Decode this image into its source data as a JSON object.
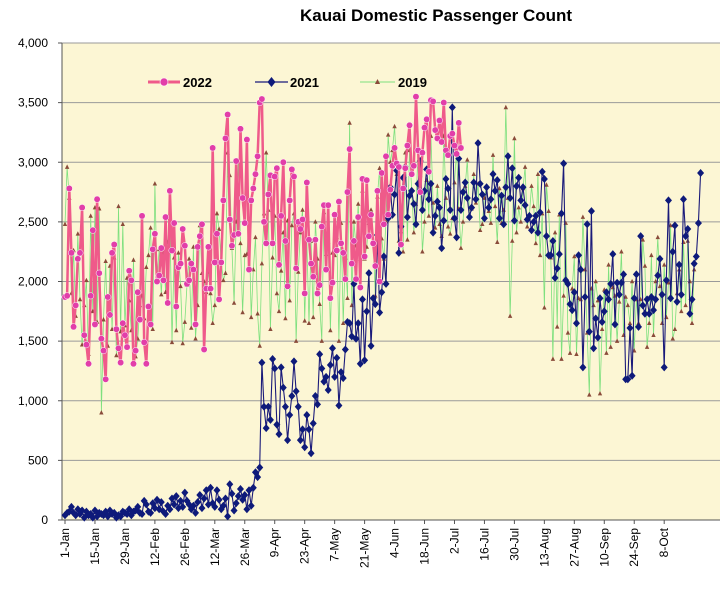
{
  "chart_data": {
    "type": "line",
    "title": "Kauai Domestic Passenger Count",
    "xlabel": "",
    "ylabel": "",
    "ylim": [
      0,
      4000
    ],
    "yticks": [
      "0",
      "500",
      "1,000",
      "1,500",
      "2,000",
      "2,500",
      "3,000",
      "3,500",
      "4,000"
    ],
    "xticks": [
      "1-Jan",
      "15-Jan",
      "29-Jan",
      "12-Feb",
      "26-Feb",
      "12-Mar",
      "26-Mar",
      "9-Apr",
      "23-Apr",
      "7-May",
      "21-May",
      "4-Jun",
      "18-Jun",
      "2-Jul",
      "16-Jul",
      "30-Jul",
      "13-Aug",
      "27-Aug",
      "10-Sep",
      "24-Sep",
      "8-Oct"
    ],
    "x_unit": "day of year",
    "legend_position": "top-left",
    "grid": "horizontal",
    "colors": {
      "plot_bg": "#fcf6d4",
      "y2022": "#ef5a8a",
      "y2021": "#1a1a7a",
      "y2019": "#7ee07e"
    },
    "series": [
      {
        "name": "2022",
        "color": "#ef5a8a",
        "marker": "circle",
        "values": [
          1870,
          1880,
          2780,
          2240,
          1620,
          1800,
          2190,
          2240,
          2620,
          1550,
          1470,
          1310,
          1880,
          2430,
          1640,
          2690,
          2070,
          1520,
          1420,
          1180,
          1870,
          1720,
          2240,
          2310,
          1600,
          1440,
          1320,
          1650,
          1550,
          1450,
          2090,
          2010,
          1310,
          1420,
          1910,
          1680,
          2550,
          1490,
          1310,
          1790,
          1640,
          2270,
          2400,
          2000,
          2050,
          2280,
          2010,
          2540,
          1820,
          2760,
          2260,
          2490,
          1790,
          2120,
          2150,
          2440,
          2300,
          1980,
          2010,
          2150,
          2100,
          1640,
          2290,
          2380,
          2480,
          1430,
          1940,
          2290,
          1940,
          3120,
          2160,
          2400,
          1850,
          2160,
          2680,
          3200,
          3400,
          2520,
          2300,
          2390,
          3010,
          2400,
          3280,
          2700,
          2490,
          3190,
          2100,
          2680,
          2780,
          2900,
          3050,
          3500,
          3530,
          2500,
          2320,
          2730,
          2890,
          2320,
          2880,
          2950,
          2140,
          2550,
          3000,
          2340,
          1960,
          2680,
          2940,
          2880,
          2110,
          2500,
          2440,
          2520,
          1900,
          2830,
          2350,
          2150,
          2040,
          2350,
          1900,
          1970,
          2460,
          2640,
          2100,
          2640,
          1860,
          1990,
          2560,
          2260,
          2670,
          2320,
          2240,
          2020,
          2750,
          3110,
          2150,
          2340,
          2020,
          2540,
          1950,
          2860,
          2210,
          2850,
          2380,
          2560,
          2320,
          2130,
          2760,
          2000,
          2910,
          2480,
          3050,
          2560,
          2770,
          2970,
          3120,
          2990,
          2960,
          2310,
          2780,
          2950,
          3140,
          3310,
          2900,
          2970,
          3550,
          3100,
          2750,
          3080,
          3290,
          3360,
          2920,
          3520,
          3510,
          3270,
          3200,
          3350,
          3170,
          3500,
          3100,
          3060,
          3220,
          3240,
          3140,
          3070,
          3330,
          3120
        ]
      },
      {
        "name": "2021",
        "color": "#1a1a7a",
        "marker": "diamond",
        "values": [
          40,
          60,
          70,
          110,
          60,
          40,
          90,
          50,
          80,
          20,
          70,
          40,
          50,
          20,
          80,
          30,
          60,
          50,
          40,
          70,
          30,
          80,
          50,
          60,
          20,
          40,
          30,
          70,
          60,
          50,
          90,
          40,
          70,
          80,
          110,
          60,
          50,
          160,
          130,
          70,
          60,
          140,
          100,
          170,
          90,
          150,
          70,
          50,
          120,
          90,
          180,
          130,
          200,
          100,
          160,
          110,
          230,
          160,
          130,
          90,
          120,
          60,
          150,
          210,
          100,
          180,
          250,
          130,
          270,
          140,
          110,
          250,
          170,
          90,
          120,
          180,
          30,
          300,
          220,
          80,
          140,
          200,
          260,
          170,
          210,
          90,
          250,
          120,
          270,
          400,
          360,
          440,
          1320,
          950,
          770,
          950,
          840,
          1350,
          1270,
          800,
          720,
          1280,
          1110,
          950,
          670,
          880,
          1040,
          1330,
          1080,
          950,
          670,
          760,
          610,
          880,
          760,
          560,
          810,
          1040,
          970,
          1390,
          1270,
          1160,
          1200,
          1090,
          1300,
          1440,
          1200,
          1360,
          960,
          1240,
          1190,
          1430,
          1660,
          1650,
          1540,
          1980,
          1520,
          1650,
          1310,
          1850,
          1340,
          1750,
          2070,
          1460,
          1860,
          1810,
          2390,
          1740,
          1910,
          2210,
          1980,
          2530,
          2790,
          2560,
          2730,
          2930,
          2240,
          2460,
          2870,
          2960,
          2540,
          2720,
          2760,
          2650,
          2480,
          2820,
          3010,
          2600,
          2760,
          2940,
          2690,
          2820,
          2410,
          2550,
          2670,
          2620,
          2280,
          2510,
          2860,
          2780,
          2600,
          3460,
          2530,
          2370,
          3030,
          2600,
          2750,
          2830,
          2700,
          2540,
          2620,
          2830,
          2690,
          3160,
          2820,
          2730,
          2530,
          2790,
          2620,
          2690,
          2900,
          2760,
          2850,
          2530,
          2720,
          2480,
          2790,
          3050,
          2700,
          2950,
          2510,
          2800,
          2870,
          2680,
          2790,
          2640,
          2520,
          2550,
          2430,
          2500,
          2550,
          2410,
          2580,
          2920,
          2860,
          2380,
          2220,
          2220,
          2340,
          2030,
          2110,
          2230,
          2570,
          2990,
          2010,
          1980,
          1810,
          1760,
          1910,
          1650,
          2220,
          2100,
          1280,
          1870,
          2480,
          1580,
          2590,
          1440,
          1690,
          1530,
          1860,
          1660,
          1750,
          1910,
          1850,
          1980,
          2230,
          1640,
          1990,
          1890,
          1990,
          2060,
          1180,
          1180,
          1610,
          1210,
          1860,
          2060,
          1620,
          2380,
          1800,
          1730,
          1850,
          1730,
          1870,
          1760,
          1850,
          2050,
          2190,
          1890,
          1280,
          2010,
          2680,
          1860,
          2250,
          2470,
          1830,
          2140,
          1890,
          2690,
          2380,
          2440,
          1730,
          1850,
          2150,
          2210,
          2490,
          2910
        ]
      },
      {
        "name": "2019",
        "color": "#7ee07e",
        "marker": "triangle",
        "values": [
          2480,
          2960,
          2700,
          1900,
          2260,
          1710,
          2400,
          1850,
          1470,
          1800,
          2010,
          1390,
          2550,
          1750,
          2620,
          1660,
          2610,
          900,
          1680,
          2170,
          1460,
          2130,
          1600,
          2200,
          1380,
          2630,
          1580,
          2480,
          1630,
          2030,
          1840,
          1590,
          2180,
          1370,
          1520,
          1800,
          1880,
          1690,
          2120,
          2220,
          2450,
          1600,
          2820,
          2020,
          2270,
          1890,
          2240,
          1910,
          2330,
          2530,
          1490,
          2200,
          1590,
          2240,
          1960,
          1480,
          1660,
          1970,
          2190,
          1610,
          2290,
          1520,
          1800,
          2470,
          2070,
          2000,
          1910,
          2080,
          1900,
          1650,
          1800,
          2570,
          2440,
          2160,
          2010,
          2070,
          3080,
          2890,
          2280,
          1820,
          2500,
          3000,
          2320,
          1740,
          2220,
          2230,
          2520,
          1700,
          2100,
          2370,
          1730,
          1460,
          2150,
          2570,
          3080,
          2600,
          1600,
          2200,
          2550,
          1900,
          1750,
          2090,
          2410,
          1690,
          2510,
          1840,
          2470,
          2570,
          1500,
          2080,
          2410,
          2600,
          1670,
          2350,
          1650,
          2340,
          1700,
          2500,
          2190,
          1810,
          1500,
          2580,
          2230,
          2330,
          1590,
          2240,
          2220,
          2370,
          1500,
          2490,
          1650,
          2200,
          1860,
          3330,
          1800,
          2500,
          2300,
          2650,
          2190,
          2760,
          2190,
          2290,
          2490,
          2600,
          2330,
          1880,
          2710,
          2950,
          2360,
          2190,
          2500,
          3230,
          3000,
          3100,
          3300,
          2900,
          2340,
          2420,
          2250,
          3080,
          2350,
          3100,
          2770,
          2410,
          2650,
          3100,
          2890,
          2250,
          2500,
          2850,
          2550,
          3220,
          2660,
          2450,
          2800,
          2480,
          2380,
          3220,
          2700,
          2460,
          2400,
          2530,
          2830,
          3100,
          2610,
          2280,
          2500,
          2800,
          3020,
          2560,
          2610,
          2900,
          2660,
          2820,
          2430,
          2480,
          2700,
          2800,
          2590,
          2490,
          3060,
          2630,
          2330,
          2780,
          2490,
          2600,
          3460,
          2700,
          1710,
          2340,
          3200,
          2410,
          2620,
          2500,
          2780,
          2960,
          2460,
          2560,
          2800,
          2630,
          2320,
          2900,
          2220,
          2570,
          1780,
          2810,
          2590,
          2200,
          1350,
          2410,
          1620,
          2560,
          1350,
          1880,
          2490,
          1570,
          1400,
          1940,
          2210,
          1390,
          1860,
          1850,
          2540,
          2100,
          1570,
          1050,
          1940,
          1800,
          2000,
          1840,
          1060,
          1600,
          1930,
          1400,
          2140,
          1450,
          1950,
          1880,
          1500,
          1830,
          2250,
          1550,
          1870,
          1800,
          1650,
          2000,
          1420,
          1850,
          1650,
          1850,
          2350,
          2130,
          1450,
          1650,
          2220,
          1550,
          2000,
          2370,
          1960,
          1650,
          2140,
          1700,
          1990,
          2470,
          1520,
          1600,
          1900,
          2100,
          1750,
          2330,
          1800,
          2340,
          2000,
          1650,
          2100
        ]
      }
    ]
  }
}
